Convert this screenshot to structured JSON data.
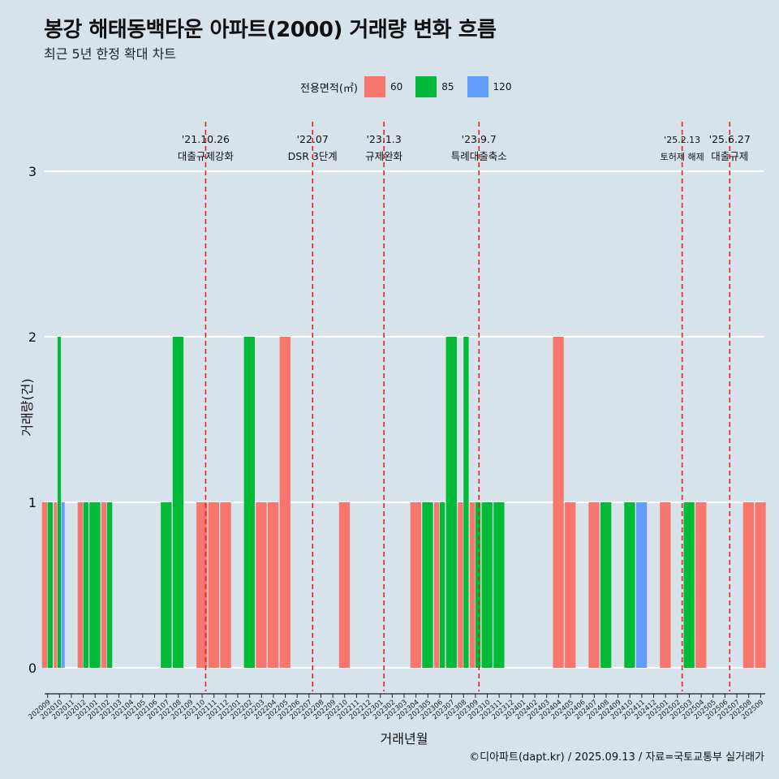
{
  "title": "봉강 해태동백타운 아파트(2000) 거래량 변화 흐름",
  "subtitle": "최근 5년 한정 확대 차트",
  "caption": "©디아파트(dapt.kr) / 2025.09.13 / 자료=국토교통부 실거래가",
  "legend": {
    "title": "전용면적(㎡)",
    "items": [
      {
        "label": "60",
        "color": "#f8766d"
      },
      {
        "label": "85",
        "color": "#00ba38"
      },
      {
        "label": "120",
        "color": "#619cff"
      }
    ]
  },
  "chart_data": {
    "type": "bar",
    "xlabel": "거래년월",
    "ylabel": "거래량(건)",
    "ylim": [
      0,
      3
    ],
    "yticks": [
      0,
      1,
      2,
      3
    ],
    "categories": [
      "202009",
      "202010",
      "202011",
      "202012",
      "202101",
      "202102",
      "202103",
      "202104",
      "202105",
      "202106",
      "202107",
      "202108",
      "202109",
      "202110",
      "202111",
      "202112",
      "202201",
      "202202",
      "202203",
      "202204",
      "202205",
      "202206",
      "202207",
      "202208",
      "202209",
      "202210",
      "202211",
      "202212",
      "202301",
      "202302",
      "202303",
      "202304",
      "202305",
      "202306",
      "202307",
      "202308",
      "202309",
      "202310",
      "202311",
      "202312",
      "202401",
      "202402",
      "202403",
      "202404",
      "202405",
      "202406",
      "202407",
      "202408",
      "202409",
      "202410",
      "202411",
      "202412",
      "202501",
      "202502",
      "202503",
      "202504",
      "202505",
      "202506",
      "202507",
      "202508",
      "202509"
    ],
    "series": [
      {
        "name": "60",
        "color": "#f8766d",
        "values": [
          1,
          1,
          0,
          1,
          0,
          1,
          0,
          0,
          0,
          0,
          0,
          0,
          0,
          1,
          1,
          1,
          0,
          0,
          1,
          1,
          2,
          0,
          0,
          0,
          0,
          1,
          0,
          0,
          0,
          0,
          0,
          1,
          0,
          1,
          0,
          1,
          1,
          0,
          0,
          0,
          0,
          0,
          0,
          2,
          1,
          0,
          1,
          0,
          0,
          0,
          0,
          0,
          1,
          0,
          0,
          1,
          0,
          0,
          0,
          1,
          1
        ]
      },
      {
        "name": "85",
        "color": "#00ba38",
        "values": [
          1,
          2,
          0,
          1,
          1,
          1,
          0,
          0,
          0,
          0,
          1,
          2,
          0,
          0,
          0,
          0,
          0,
          2,
          0,
          0,
          0,
          0,
          0,
          0,
          0,
          0,
          0,
          0,
          0,
          0,
          0,
          0,
          1,
          1,
          2,
          2,
          1,
          1,
          1,
          0,
          0,
          0,
          0,
          0,
          0,
          0,
          0,
          1,
          0,
          1,
          0,
          0,
          0,
          0,
          1,
          0,
          0,
          0,
          0,
          0,
          0
        ]
      },
      {
        "name": "120",
        "color": "#619cff",
        "values": [
          0,
          1,
          0,
          0,
          0,
          0,
          0,
          0,
          0,
          0,
          0,
          0,
          0,
          0,
          0,
          0,
          0,
          0,
          0,
          0,
          0,
          0,
          0,
          0,
          0,
          0,
          0,
          0,
          0,
          0,
          0,
          0,
          0,
          0,
          0,
          0,
          0,
          0,
          0,
          0,
          0,
          0,
          0,
          0,
          0,
          0,
          0,
          0,
          0,
          0,
          1,
          0,
          0,
          0,
          0,
          0,
          0,
          0,
          0,
          0,
          0
        ]
      }
    ],
    "events": [
      {
        "date": "'21.10.26",
        "label": "대출규제강화",
        "position": 13.3
      },
      {
        "date": "'22.07",
        "label": "DSR 3단계",
        "position": 22.3
      },
      {
        "date": "'23.1.3",
        "label": "규제완화",
        "position": 28.3
      },
      {
        "date": "'23.9.7",
        "label": "특례대출축소",
        "position": 36.3
      },
      {
        "date": "'25.2.13",
        "label": "토허제 해제",
        "position": 53.4
      },
      {
        "date": "'25.6.27",
        "label": "대출규제",
        "position": 57.4
      }
    ],
    "grid": true,
    "legend_position": "top"
  }
}
